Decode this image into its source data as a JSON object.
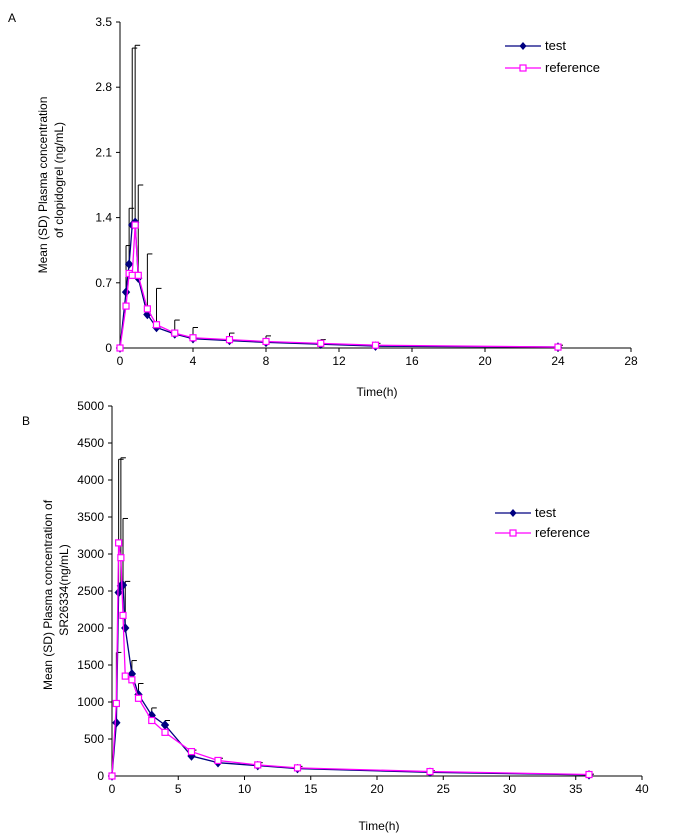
{
  "chart_data": [
    {
      "type": "line",
      "panel_label": "A",
      "xlabel": "Time(h)",
      "ylabel_lines": [
        "Mean (SD) Plasma concentration",
        "of clopidogrel (ng/mL)"
      ],
      "xlim": [
        0,
        28
      ],
      "ylim": [
        0,
        3.5
      ],
      "xticks": [
        "0",
        "4",
        "8",
        "12",
        "16",
        "20",
        "24",
        "28"
      ],
      "yticks": [
        "0",
        "0.7",
        "1.4",
        "2.1",
        "2.8",
        "3.5"
      ],
      "grid": false,
      "legend": "top-right",
      "series": [
        {
          "name": "test",
          "color": "#000080",
          "marker": "diamond",
          "x": [
            0,
            0.33,
            0.5,
            0.67,
            0.83,
            1,
            1.5,
            2,
            3,
            4,
            6,
            8,
            11,
            14,
            24
          ],
          "y": [
            0,
            0.6,
            0.9,
            1.32,
            1.35,
            0.75,
            0.36,
            0.22,
            0.15,
            0.1,
            0.08,
            0.06,
            0.04,
            0.02,
            0.01
          ],
          "sd": [
            0,
            0.5,
            0.6,
            1.9,
            1.9,
            1.0,
            0.65,
            0.42,
            0.15,
            0.12,
            0.08,
            0.07,
            0.05,
            0.03,
            0.02
          ]
        },
        {
          "name": "reference",
          "color": "#ff00ff",
          "marker": "square",
          "x": [
            0,
            0.33,
            0.5,
            0.67,
            0.83,
            1,
            1.5,
            2,
            3,
            4,
            6,
            8,
            11,
            14,
            24
          ],
          "y": [
            0,
            0.45,
            0.8,
            0.78,
            1.32,
            0.78,
            0.42,
            0.25,
            0.16,
            0.11,
            0.09,
            0.07,
            0.05,
            0.03,
            0.01
          ]
        }
      ]
    },
    {
      "type": "line",
      "panel_label": "B",
      "xlabel": "Time(h)",
      "ylabel_lines": [
        "Mean (SD) Plasma concentration of",
        "SR26334(ng/mL)"
      ],
      "xlim": [
        0,
        40
      ],
      "ylim": [
        0,
        5000
      ],
      "xticks": [
        "0",
        "5",
        "10",
        "15",
        "20",
        "25",
        "30",
        "35",
        "40"
      ],
      "yticks": [
        "0",
        "500",
        "1000",
        "1500",
        "2000",
        "2500",
        "3000",
        "3500",
        "4000",
        "4500",
        "5000"
      ],
      "grid": false,
      "legend": "middle-right",
      "series": [
        {
          "name": "test",
          "color": "#000080",
          "marker": "diamond",
          "x": [
            0,
            0.33,
            0.5,
            0.67,
            0.83,
            1,
            1.5,
            2,
            3,
            4,
            6,
            8,
            11,
            14,
            24,
            36
          ],
          "y": [
            0,
            720,
            2480,
            2570,
            2580,
            2000,
            1380,
            1100,
            820,
            690,
            270,
            180,
            140,
            100,
            50,
            15
          ],
          "sd": [
            0,
            950,
            1800,
            1730,
            900,
            630,
            180,
            150,
            100,
            60,
            80,
            60,
            40,
            30,
            20,
            10
          ]
        },
        {
          "name": "reference",
          "color": "#ff00ff",
          "marker": "square",
          "x": [
            0,
            0.33,
            0.5,
            0.67,
            0.83,
            1,
            1.5,
            2,
            3,
            4,
            6,
            8,
            11,
            14,
            24,
            36
          ],
          "y": [
            0,
            980,
            3150,
            2950,
            2170,
            1350,
            1300,
            1050,
            750,
            590,
            330,
            210,
            150,
            110,
            60,
            20
          ]
        }
      ]
    }
  ]
}
